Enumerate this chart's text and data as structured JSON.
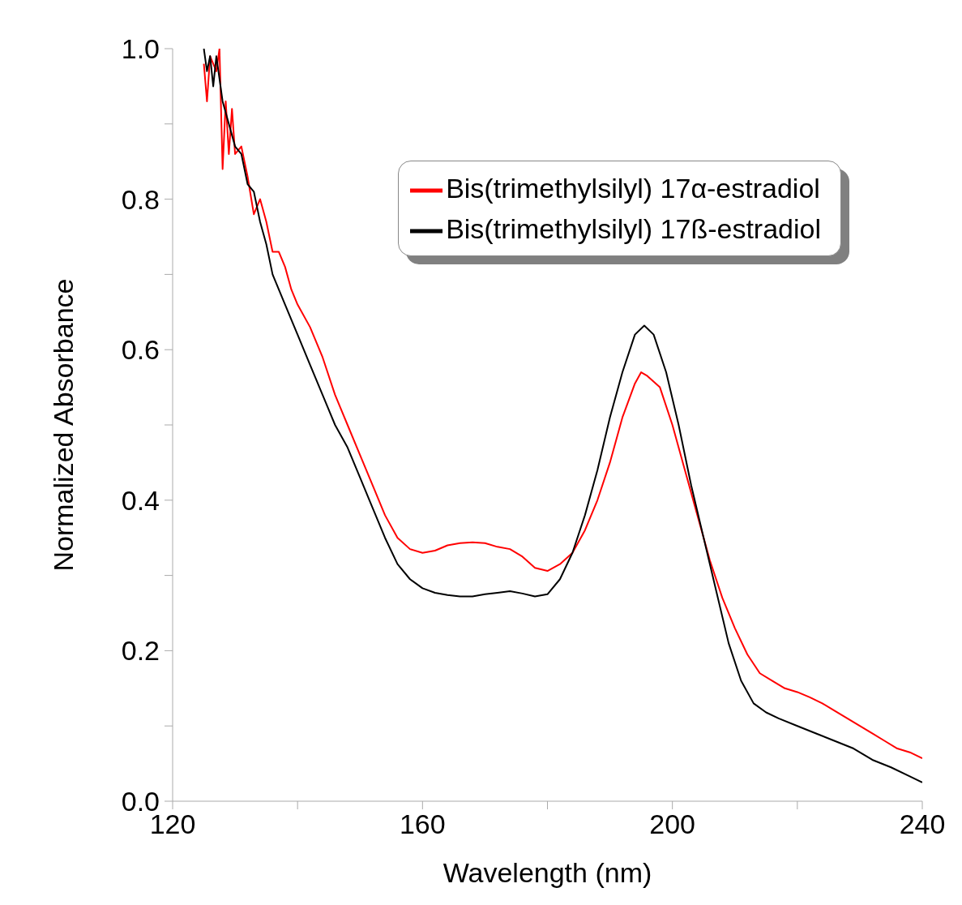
{
  "chart_data": {
    "type": "line",
    "xlabel": "Wavelength (nm)",
    "ylabel": "Normalized Absorbance",
    "legend": "top right",
    "grid": false,
    "xlim": [
      120,
      240
    ],
    "xticks": [
      120,
      {
        "value": 140,
        "label": null
      },
      160,
      {
        "value": 180,
        "label": null
      },
      200,
      {
        "value": 220,
        "label": null
      },
      240
    ],
    "ylim": [
      0,
      1
    ],
    "yticks": [
      {
        "value": 0,
        "label": "0.0"
      },
      {
        "value": 0.1,
        "label": null
      },
      {
        "value": 0.2,
        "label": "0.2"
      },
      {
        "value": 0.3,
        "label": null
      },
      {
        "value": 0.4,
        "label": "0.4"
      },
      {
        "value": 0.5,
        "label": null
      },
      {
        "value": 0.6,
        "label": "0.6"
      },
      {
        "value": 0.7,
        "label": null
      },
      {
        "value": 0.8,
        "label": "0.8"
      },
      {
        "value": 0.9,
        "label": null
      },
      {
        "value": 1,
        "label": "1.0"
      }
    ],
    "series": [
      {
        "name": "Bis(trimethylsilyl) 17α-estradiol",
        "color": "#ff0000",
        "x": [
          125,
          125.5,
          126,
          127,
          127.5,
          128,
          128.5,
          129,
          129.5,
          130,
          131,
          132,
          133,
          134,
          135,
          136,
          137,
          138,
          139,
          140,
          142,
          144,
          146,
          148,
          150,
          152,
          154,
          156,
          158,
          160,
          162,
          164,
          166,
          168,
          170,
          172,
          174,
          176,
          178,
          180,
          182,
          184,
          186,
          188,
          190,
          192,
          194,
          195,
          196,
          198,
          200,
          202,
          204,
          206,
          208,
          210,
          212,
          214,
          216,
          218,
          220,
          222,
          224,
          226,
          228,
          230,
          232,
          234,
          236,
          238,
          240
        ],
        "values": [
          0.98,
          0.93,
          0.99,
          0.97,
          1.0,
          0.84,
          0.93,
          0.86,
          0.92,
          0.86,
          0.87,
          0.83,
          0.78,
          0.8,
          0.77,
          0.73,
          0.73,
          0.71,
          0.68,
          0.66,
          0.63,
          0.59,
          0.54,
          0.5,
          0.46,
          0.42,
          0.38,
          0.35,
          0.335,
          0.33,
          0.333,
          0.34,
          0.343,
          0.344,
          0.343,
          0.338,
          0.335,
          0.325,
          0.31,
          0.306,
          0.315,
          0.33,
          0.36,
          0.4,
          0.45,
          0.51,
          0.555,
          0.57,
          0.565,
          0.55,
          0.5,
          0.44,
          0.38,
          0.32,
          0.27,
          0.23,
          0.195,
          0.17,
          0.16,
          0.15,
          0.145,
          0.138,
          0.13,
          0.12,
          0.11,
          0.1,
          0.09,
          0.08,
          0.07,
          0.065,
          0.057
        ]
      },
      {
        "name": "Bis(trimethylsilyl) 17ß-estradiol",
        "color": "#000000",
        "x": [
          125,
          125.5,
          126,
          126.5,
          127,
          128,
          129,
          130,
          131,
          132,
          133,
          134,
          135,
          136,
          138,
          140,
          142,
          144,
          146,
          148,
          150,
          152,
          154,
          156,
          158,
          160,
          162,
          164,
          166,
          168,
          170,
          172,
          174,
          176,
          178,
          180,
          182,
          184,
          186,
          188,
          190,
          192,
          194,
          195.5,
          197,
          199,
          201,
          203,
          205,
          207,
          209,
          211,
          213,
          215,
          217,
          220,
          223,
          226,
          229,
          232,
          235,
          238,
          240
        ],
        "values": [
          1.0,
          0.97,
          0.99,
          0.95,
          0.99,
          0.93,
          0.9,
          0.87,
          0.86,
          0.82,
          0.81,
          0.77,
          0.74,
          0.7,
          0.66,
          0.62,
          0.58,
          0.54,
          0.5,
          0.47,
          0.43,
          0.39,
          0.35,
          0.315,
          0.295,
          0.283,
          0.277,
          0.274,
          0.272,
          0.272,
          0.275,
          0.277,
          0.279,
          0.276,
          0.272,
          0.275,
          0.295,
          0.33,
          0.38,
          0.44,
          0.51,
          0.57,
          0.62,
          0.632,
          0.62,
          0.57,
          0.5,
          0.42,
          0.35,
          0.28,
          0.21,
          0.16,
          0.13,
          0.118,
          0.11,
          0.1,
          0.09,
          0.08,
          0.07,
          0.055,
          0.045,
          0.033,
          0.025
        ]
      }
    ]
  }
}
